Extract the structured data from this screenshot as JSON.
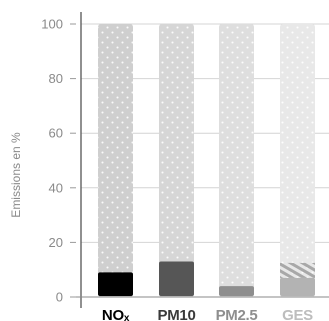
{
  "chart_data": {
    "type": "bar",
    "ylabel": "Emissions en %",
    "ylim": [
      0,
      100
    ],
    "yticks": [
      0,
      20,
      40,
      60,
      80,
      100
    ],
    "grid": true,
    "categories": [
      {
        "label": "NO",
        "subscript": "x",
        "label_color": "#000000"
      },
      {
        "label": "PM10",
        "label_color": "#3a3a3a"
      },
      {
        "label": "PM2.5",
        "label_color": "#8e8e8e"
      },
      {
        "label": "GES",
        "label_color": "#bdbdbd"
      }
    ],
    "series": [
      {
        "values": [
          100,
          100,
          100,
          100
        ],
        "colors": [
          "#cfcfcf",
          "#d6d6d6",
          "#dedede",
          "#e8e8e8"
        ],
        "pattern": "dotted"
      },
      {
        "values": [
          9,
          13,
          4,
          7
        ],
        "colors": [
          "#000000",
          "#565656",
          "#8e8e8e",
          "#b3b3b3"
        ]
      }
    ],
    "overlays": [
      {
        "category_index": 3,
        "from": 7,
        "to": 12.5,
        "pattern": "hatched",
        "color": "#a8a8a8"
      }
    ]
  }
}
